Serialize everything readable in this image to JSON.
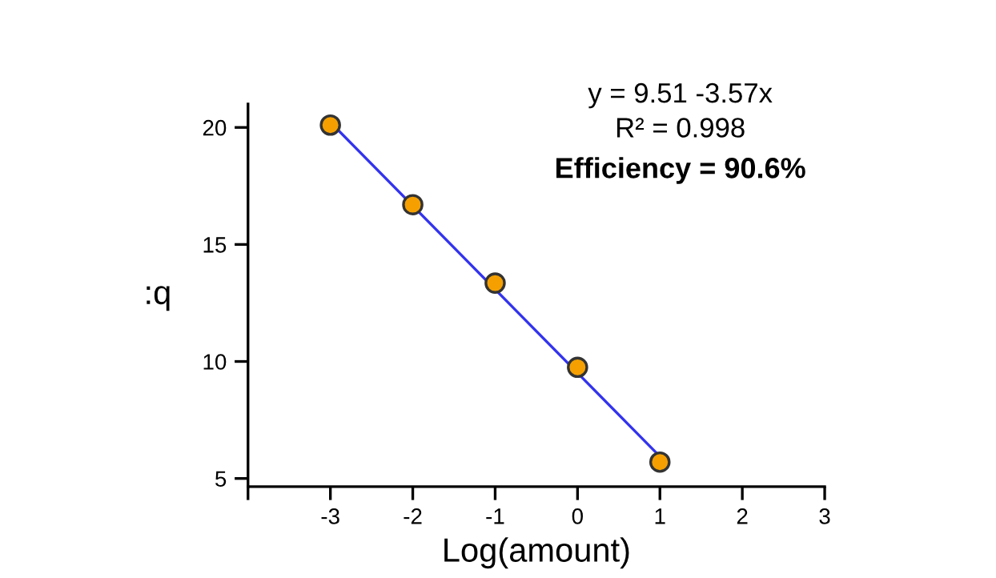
{
  "chart_data": {
    "type": "scatter",
    "xlabel": "Log(amount)",
    "ylabel": ":q",
    "annotations": [
      "y = 9.51 -3.57x",
      "R² = 0.998",
      "Efficiency = 90.6%"
    ],
    "series": [
      {
        "type": "line",
        "color": "#3333ee",
        "x": [
          -3,
          1
        ],
        "values": [
          20.22,
          5.94
        ],
        "marker": "none",
        "line_style": "solid"
      },
      {
        "color": "#f5a000",
        "x": [
          -3,
          -2,
          -1,
          0,
          1
        ],
        "values": [
          20.1,
          16.7,
          13.35,
          9.75,
          5.7
        ],
        "marker": "circle"
      }
    ],
    "xlim": [
      -4,
      3
    ],
    "xticks": [
      {
        "value": -4,
        "label": null
      },
      -3,
      -2,
      -1,
      0,
      1,
      2,
      3
    ],
    "ylim": [
      4.65,
      21
    ],
    "yticks": [
      5,
      10,
      15,
      20
    ],
    "grid": false,
    "legend": false
  }
}
